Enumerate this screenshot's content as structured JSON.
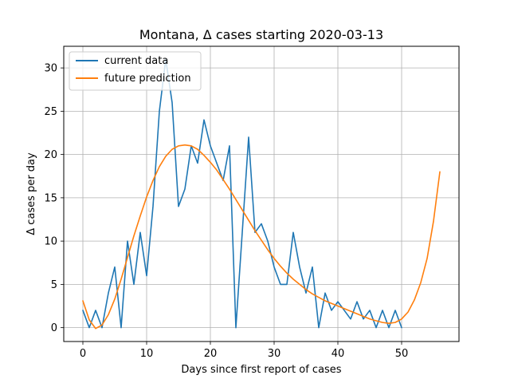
{
  "chart_data": {
    "type": "line",
    "title": "Montana, Δ cases starting 2020-03-13",
    "xlabel": "Days since first report of cases",
    "ylabel": "Δ cases per day",
    "xlim": [
      -3,
      59
    ],
    "ylim": [
      -1.6,
      32.5
    ],
    "xticks": [
      0,
      10,
      20,
      30,
      40,
      50
    ],
    "yticks": [
      0,
      5,
      10,
      15,
      20,
      25,
      30
    ],
    "grid": true,
    "legend_position": "top-left",
    "series": [
      {
        "name": "current data",
        "color": "#1f77b4",
        "x": [
          0,
          1,
          2,
          3,
          4,
          5,
          6,
          7,
          8,
          9,
          10,
          11,
          12,
          13,
          14,
          15,
          16,
          17,
          18,
          19,
          20,
          21,
          22,
          23,
          24,
          25,
          26,
          27,
          28,
          29,
          30,
          31,
          32,
          33,
          34,
          35,
          36,
          37,
          38,
          39,
          40,
          41,
          42,
          43,
          44,
          45,
          46,
          47,
          48,
          49,
          50
        ],
        "values": [
          2,
          0,
          2,
          0,
          4,
          7,
          0,
          10,
          5,
          11,
          6,
          14,
          25,
          31,
          26,
          14,
          16,
          21,
          19,
          24,
          21,
          19,
          17,
          21,
          0,
          11,
          22,
          11,
          12,
          10,
          7,
          5,
          5,
          11,
          7,
          4,
          7,
          0,
          4,
          2,
          3,
          2,
          1,
          3,
          1,
          2,
          0,
          2,
          0,
          2,
          0
        ]
      },
      {
        "name": "future prediction",
        "color": "#ff7f0e",
        "x": [
          0,
          1,
          2,
          3,
          4,
          5,
          6,
          7,
          8,
          9,
          10,
          11,
          12,
          13,
          14,
          15,
          16,
          17,
          18,
          19,
          20,
          21,
          22,
          23,
          24,
          25,
          26,
          27,
          28,
          29,
          30,
          31,
          32,
          33,
          34,
          35,
          36,
          37,
          38,
          39,
          40,
          41,
          42,
          43,
          44,
          45,
          46,
          47,
          48,
          49,
          50,
          51,
          52,
          53,
          54,
          55,
          56
        ],
        "values": [
          3.1,
          0.9,
          -0.1,
          0.3,
          1.5,
          3.3,
          5.6,
          8.1,
          10.6,
          12.9,
          15.1,
          17.0,
          18.6,
          19.8,
          20.6,
          21.0,
          21.1,
          21.0,
          20.6,
          19.9,
          19.1,
          18.2,
          17.1,
          16.0,
          14.8,
          13.6,
          12.4,
          11.2,
          10.1,
          9.0,
          8.0,
          7.1,
          6.3,
          5.6,
          5.0,
          4.4,
          3.9,
          3.5,
          3.1,
          2.8,
          2.5,
          2.2,
          1.9,
          1.6,
          1.3,
          1.0,
          0.8,
          0.6,
          0.5,
          0.6,
          1.0,
          1.8,
          3.2,
          5.2,
          8.0,
          12.3,
          18.0
        ]
      }
    ]
  }
}
